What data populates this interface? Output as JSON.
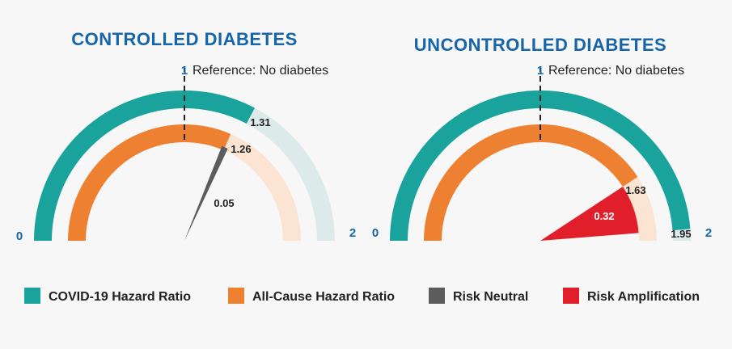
{
  "chart_data": [
    {
      "type": "gauge",
      "title": "CONTROLLED DIABETES",
      "scale": {
        "min": 0,
        "max": 2,
        "reference": 1
      },
      "tick_labels": {
        "min": "0",
        "mid": "1",
        "max": "2"
      },
      "reference_label": "Reference: No diabetes",
      "series": [
        {
          "name": "COVID-19 Hazard Ratio",
          "value": 1.31,
          "label": "1.31"
        },
        {
          "name": "All-Cause Hazard Ratio",
          "value": 1.26,
          "label": "1.26"
        }
      ],
      "difference": {
        "value": 0.05,
        "label": "0.05",
        "category": "Risk Neutral"
      }
    },
    {
      "type": "gauge",
      "title": "UNCONTROLLED DIABETES",
      "scale": {
        "min": 0,
        "max": 2,
        "reference": 1
      },
      "tick_labels": {
        "min": "0",
        "mid": "1",
        "max": "2"
      },
      "reference_label": "Reference: No diabetes",
      "series": [
        {
          "name": "COVID-19 Hazard Ratio",
          "value": 1.95,
          "label": "1.95"
        },
        {
          "name": "All-Cause Hazard Ratio",
          "value": 1.63,
          "label": "1.63"
        }
      ],
      "difference": {
        "value": 0.32,
        "label": "0.32",
        "category": "Risk Amplification"
      }
    }
  ],
  "legend": [
    {
      "label": "COVID-19 Hazard Ratio",
      "color": "#1aa39c"
    },
    {
      "label": "All-Cause Hazard Ratio",
      "color": "#ee8032"
    },
    {
      "label": "Risk Neutral",
      "color": "#5c5c5c"
    },
    {
      "label": "Risk Amplification",
      "color": "#e11f2b"
    }
  ],
  "colors": {
    "title": "#1565a8",
    "tick": "#1565a8",
    "covid": "#1aa39c",
    "covid_light": "#dcebea",
    "allcause": "#ee8032",
    "allcause_light": "#fce4d3",
    "neutral": "#5c5c5c",
    "amplification": "#e11f2b"
  }
}
